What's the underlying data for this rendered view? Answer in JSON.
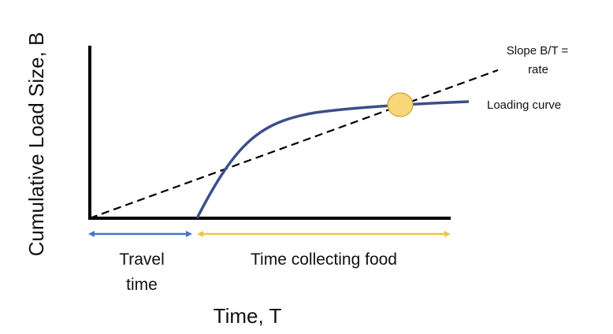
{
  "diagram": {
    "y_axis_label": "Cumulative Load Size, B",
    "x_axis_label": "Time, T",
    "slope_label_line1": "Slope B/T =",
    "slope_label_line2": "rate",
    "curve_label": "Loading curve",
    "travel_label_line1": "Travel",
    "travel_label_line2": "time",
    "collecting_label": "Time collecting food"
  },
  "colors": {
    "axis": "#000000",
    "loading_curve": "#3a4f8a",
    "rate_line": "#000000",
    "travel_arrow": "#4a72c4",
    "collecting_arrow": "#f2c245",
    "optimum_marker_fill": "#f9d679",
    "optimum_marker_stroke": "#c9a13a"
  }
}
